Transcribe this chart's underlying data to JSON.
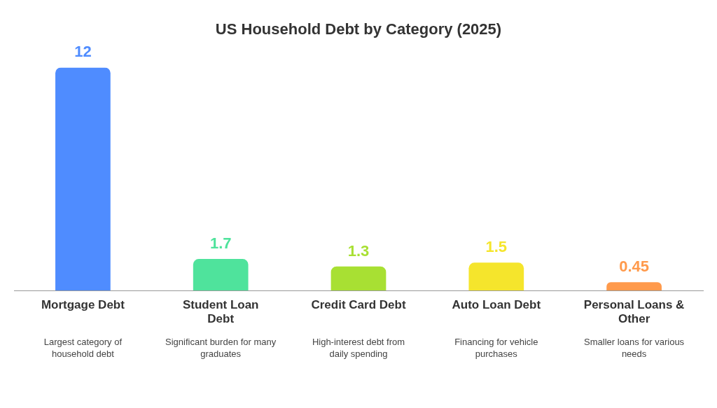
{
  "chart_data": {
    "type": "bar",
    "title": "US Household Debt by Category (2025)",
    "categories": [
      "Mortgage Debt",
      "Student Loan Debt",
      "Credit Card Debt",
      "Auto Loan Debt",
      "Personal Loans & Other"
    ],
    "values": [
      12,
      1.7,
      1.3,
      1.5,
      0.45
    ],
    "colors": [
      "#4f8cff",
      "#4fe39c",
      "#a8e033",
      "#f5e52c",
      "#ff9a4c"
    ],
    "data_labels": true,
    "annotations": [
      "Largest category of household debt",
      "Significant burden for many graduates",
      "High-interest debt from daily spending",
      "Financing for vehicle purchases",
      "Smaller loans for various needs"
    ]
  }
}
